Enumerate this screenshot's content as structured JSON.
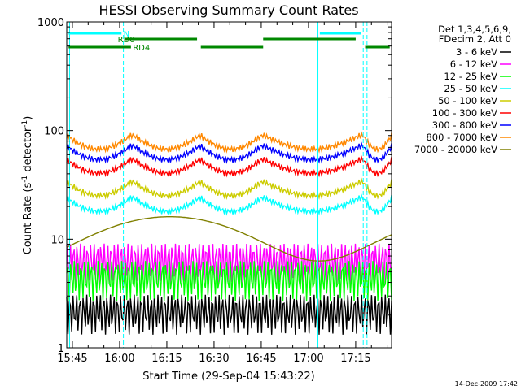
{
  "chart_data": {
    "type": "line",
    "title": "HESSI Observing Summary Count Rates",
    "xlabel": "Start Time (29-Sep-04 15:43:22)",
    "ylabel_main": "Count Rate (s",
    "ylabel_sup1": "-1",
    "ylabel_mid": " detector",
    "ylabel_sup2": "-1",
    "ylabel_end": ")",
    "y_scale": "log",
    "ylim": [
      1,
      1000
    ],
    "xlim_minutes": [
      15.72,
      17.44
    ],
    "x_ticks": [
      {
        "label": "15:45",
        "hours": 15.75
      },
      {
        "label": "16:00",
        "hours": 16.0
      },
      {
        "label": "16:15",
        "hours": 16.25
      },
      {
        "label": "16:30",
        "hours": 16.5
      },
      {
        "label": "16:45",
        "hours": 16.75
      },
      {
        "label": "17:00",
        "hours": 17.0
      },
      {
        "label": "17:15",
        "hours": 17.25
      }
    ],
    "y_ticks": [
      {
        "label": "1",
        "value": 1
      },
      {
        "label": "10",
        "value": 10
      },
      {
        "label": "100",
        "value": 100
      },
      {
        "label": "1000",
        "value": 1000
      }
    ],
    "legend_header": [
      "Det 1,3,4,5,6,9,",
      "FDecim 2, Att 0"
    ],
    "legend_position": "right",
    "series": [
      {
        "name": "3 - 6 keV",
        "color": "#000000",
        "level": 2.2
      },
      {
        "name": "6 - 12 keV",
        "color": "#ff00ff",
        "level": 6.5
      },
      {
        "name": "12 - 25 keV",
        "color": "#00ff00",
        "level": 4.5
      },
      {
        "name": "25 - 50 keV",
        "color": "#00ffff",
        "level": 20
      },
      {
        "name": "50 - 100 keV",
        "color": "#cccc00",
        "level": 28
      },
      {
        "name": "100 - 300 keV",
        "color": "#ff0000",
        "level": 45
      },
      {
        "name": "300 - 800 keV",
        "color": "#0000ff",
        "level": 60
      },
      {
        "name": "800 - 7000 keV",
        "color": "#ff8800",
        "level": 75
      },
      {
        "name": "7000 - 20000 keV",
        "color": "#808000",
        "level": 14
      }
    ],
    "flags": [
      {
        "label": "N",
        "color": "#00ffff"
      },
      {
        "label": "RD0",
        "color": "#008800"
      },
      {
        "label": "RD4",
        "color": "#008800"
      }
    ],
    "timestamp": "14-Dec-2009 17:42"
  }
}
